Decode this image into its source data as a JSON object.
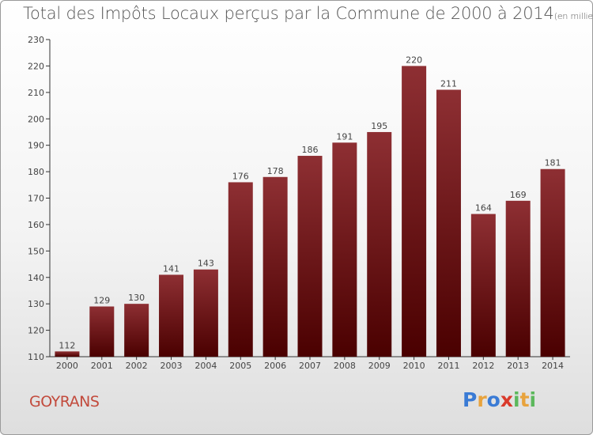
{
  "header": {
    "title": "Total des Impôts Locaux perçus par la Commune de 2000 à 2014",
    "unit": "(en milliers d'€)"
  },
  "footer": {
    "commune": "GOYRANS",
    "logo": [
      "P",
      "r",
      "o",
      "x",
      "i",
      "t",
      "i"
    ]
  },
  "colors": {
    "bar_top": "#8e2f33",
    "bar_bottom": "#4a0000",
    "commune": "#c24a3c",
    "logo": [
      "#3a7bd5",
      "#e8a33d",
      "#3a7bd5",
      "#d93a2b",
      "#5cb85c",
      "#e8a33d",
      "#5cb85c"
    ]
  },
  "chart_data": {
    "type": "bar",
    "title": "Total des Impôts Locaux perçus par la Commune de 2000 à 2014",
    "ylabel": "en milliers d'€",
    "xlabel": "",
    "categories": [
      "2000",
      "2001",
      "2002",
      "2003",
      "2004",
      "2005",
      "2006",
      "2007",
      "2008",
      "2009",
      "2010",
      "2011",
      "2012",
      "2013",
      "2014"
    ],
    "values": [
      112,
      129,
      130,
      141,
      143,
      176,
      178,
      186,
      191,
      195,
      220,
      211,
      164,
      169,
      181
    ],
    "ylim": [
      110,
      230
    ],
    "yticks": [
      110,
      120,
      130,
      140,
      150,
      160,
      170,
      180,
      190,
      200,
      210,
      220,
      230
    ],
    "grid": false,
    "data_labels": true
  }
}
